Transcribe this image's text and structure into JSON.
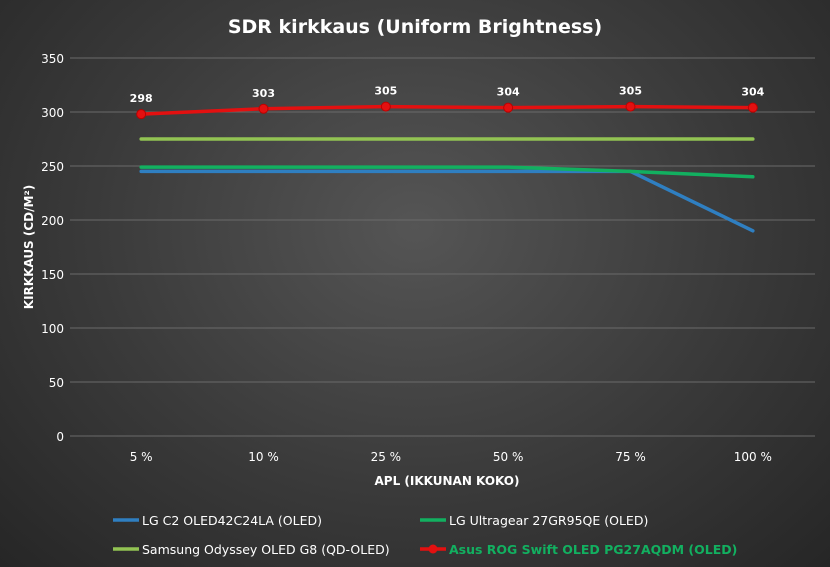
{
  "chart_data": {
    "type": "line",
    "title": "SDR kirkkaus (Uniform Brightness)",
    "xlabel": "APL (IKKUNAN KOKO)",
    "ylabel": "KIRKKAUS (CD/M²)",
    "ylim": [
      0,
      350
    ],
    "yticks": [
      0,
      50,
      100,
      150,
      200,
      250,
      300,
      350
    ],
    "categories": [
      "5 %",
      "10 %",
      "25 %",
      "50 %",
      "75 %",
      "100 %"
    ],
    "grid": true,
    "legend_position": "bottom",
    "series": [
      {
        "name": "LG C2 OLED42C24LA (OLED)",
        "color": "#2f7fc1",
        "values": [
          245,
          245,
          245,
          245,
          245,
          190
        ],
        "markers": false,
        "labels": false
      },
      {
        "name": "LG Ultragear 27GR95QE (OLED)",
        "color": "#12b060",
        "values": [
          249,
          249,
          249,
          249,
          245,
          240
        ],
        "markers": false,
        "labels": false
      },
      {
        "name": "Samsung Odyssey OLED G8 (QD-OLED)",
        "color": "#92c353",
        "values": [
          275,
          275,
          275,
          275,
          275,
          275
        ],
        "markers": false,
        "labels": false
      },
      {
        "name": "Asus ROG Swift OLED PG27AQDM (OLED)",
        "color": "#e31010",
        "values": [
          298,
          303,
          305,
          304,
          305,
          304
        ],
        "markers": true,
        "labels": true,
        "legend_text_color": "#12b060"
      }
    ]
  }
}
